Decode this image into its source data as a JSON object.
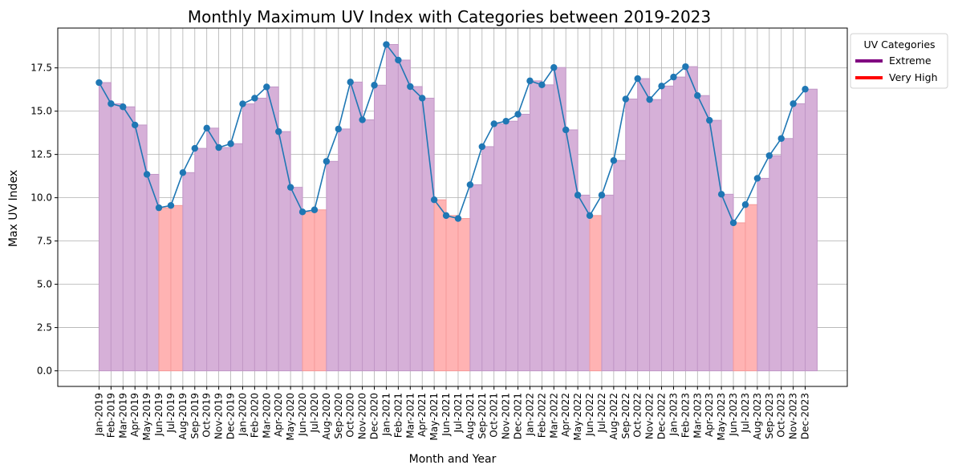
{
  "chart_data": {
    "type": "bar",
    "title": "Monthly Maximum UV Index with Categories between 2019-2023",
    "xlabel": "Month and Year",
    "ylabel": "Max UV Index",
    "ylim": [
      -0.9,
      19.8
    ],
    "yticks": [
      "0.0",
      "2.5",
      "5.0",
      "7.5",
      "10.0",
      "12.5",
      "15.0",
      "17.5"
    ],
    "grid": true,
    "legend": {
      "title": "UV Categories",
      "placement": "outside-top-right",
      "entries": [
        {
          "label": "Extreme",
          "color": "#800080"
        },
        {
          "label": "Very High",
          "color": "#ff0000"
        }
      ]
    },
    "colors": {
      "line": "#1f77b4",
      "bar_extreme": "#d6b0d8",
      "bar_extreme_edge": "#c197c6",
      "bar_very_high": "#ffb3b3",
      "bar_very_high_edge": "#f59a9a"
    },
    "categories": [
      "Jan-2019",
      "Feb-2019",
      "Mar-2019",
      "Apr-2019",
      "May-2019",
      "Jun-2019",
      "Jul-2019",
      "Aug-2019",
      "Sep-2019",
      "Oct-2019",
      "Nov-2019",
      "Dec-2019",
      "Jan-2020",
      "Feb-2020",
      "Mar-2020",
      "Apr-2020",
      "May-2020",
      "Jun-2020",
      "Jul-2020",
      "Aug-2020",
      "Sep-2020",
      "Oct-2020",
      "Nov-2020",
      "Dec-2020",
      "Jan-2021",
      "Feb-2021",
      "Mar-2021",
      "Apr-2021",
      "May-2021",
      "Jun-2021",
      "Jul-2021",
      "Aug-2021",
      "Sep-2021",
      "Oct-2021",
      "Nov-2021",
      "Dec-2021",
      "Jan-2022",
      "Feb-2022",
      "Mar-2022",
      "Apr-2022",
      "May-2022",
      "Jun-2022",
      "Jul-2022",
      "Aug-2022",
      "Sep-2022",
      "Oct-2022",
      "Nov-2022",
      "Dec-2022",
      "Jan-2023",
      "Feb-2023",
      "Mar-2023",
      "Apr-2023",
      "May-2023",
      "Jun-2023",
      "Jul-2023",
      "Aug-2023",
      "Sep-2023",
      "Oct-2023",
      "Nov-2023",
      "Dec-2023"
    ],
    "values": [
      16.65,
      15.43,
      15.25,
      14.2,
      11.35,
      9.42,
      9.55,
      11.45,
      12.85,
      14.02,
      12.9,
      13.12,
      15.42,
      15.75,
      16.4,
      13.82,
      10.6,
      9.18,
      9.3,
      12.1,
      13.97,
      16.68,
      14.5,
      16.5,
      18.85,
      17.95,
      16.42,
      15.75,
      9.88,
      8.97,
      8.8,
      10.75,
      12.95,
      14.27,
      14.42,
      14.82,
      16.75,
      16.52,
      17.52,
      13.92,
      10.15,
      8.97,
      10.15,
      12.15,
      15.7,
      16.88,
      15.67,
      16.45,
      16.97,
      17.57,
      15.9,
      14.47,
      10.2,
      8.55,
      9.6,
      11.12,
      12.43,
      13.42,
      15.43,
      16.27
    ],
    "uv_category": [
      "Extreme",
      "Extreme",
      "Extreme",
      "Extreme",
      "Extreme",
      "Very High",
      "Very High",
      "Extreme",
      "Extreme",
      "Extreme",
      "Extreme",
      "Extreme",
      "Extreme",
      "Extreme",
      "Extreme",
      "Extreme",
      "Extreme",
      "Very High",
      "Very High",
      "Extreme",
      "Extreme",
      "Extreme",
      "Extreme",
      "Extreme",
      "Extreme",
      "Extreme",
      "Extreme",
      "Extreme",
      "Very High",
      "Very High",
      "Very High",
      "Extreme",
      "Extreme",
      "Extreme",
      "Extreme",
      "Extreme",
      "Extreme",
      "Extreme",
      "Extreme",
      "Extreme",
      "Extreme",
      "Very High",
      "Extreme",
      "Extreme",
      "Extreme",
      "Extreme",
      "Extreme",
      "Extreme",
      "Extreme",
      "Extreme",
      "Extreme",
      "Extreme",
      "Extreme",
      "Very High",
      "Very High",
      "Extreme",
      "Extreme",
      "Extreme",
      "Extreme",
      "Extreme"
    ]
  }
}
